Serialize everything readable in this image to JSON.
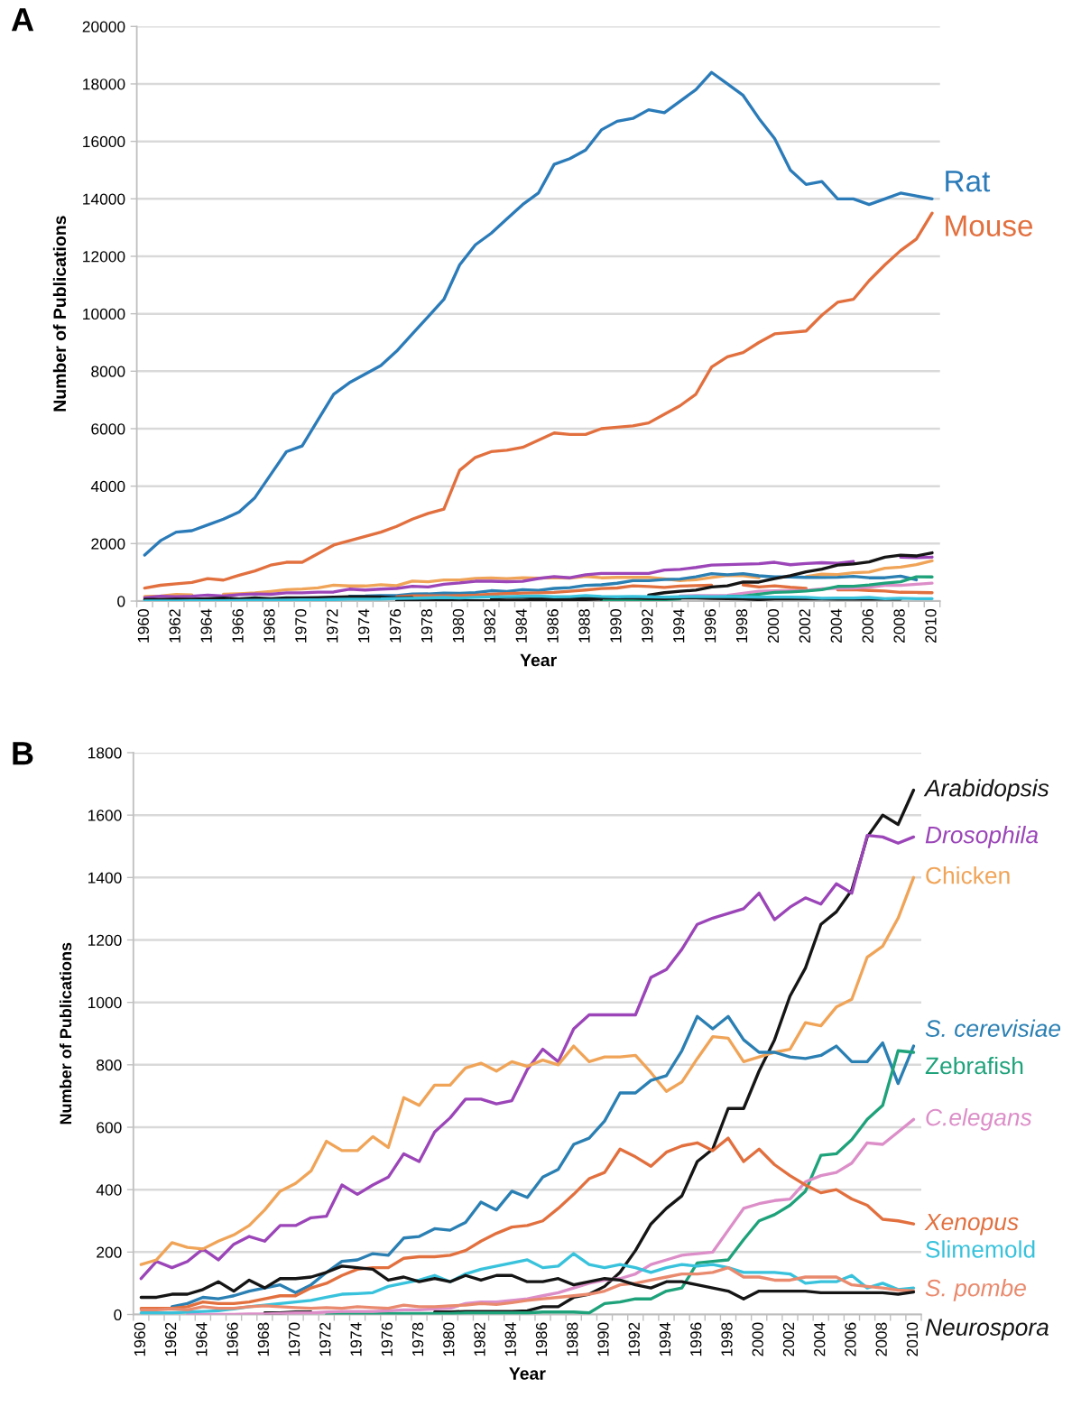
{
  "chart_data": [
    {
      "type": "line",
      "title": "A",
      "xlabel": "Year",
      "ylabel": "Number of Publications",
      "grid": "y",
      "ylim": [
        0,
        20000
      ],
      "yticks": [
        0,
        2000,
        4000,
        6000,
        8000,
        10000,
        12000,
        14000,
        16000,
        18000,
        20000
      ],
      "categories": [
        "1960",
        null,
        "1962",
        null,
        "1964",
        null,
        "1966",
        null,
        "1968",
        null,
        "1970",
        null,
        "1972",
        null,
        "1974",
        null,
        "1976",
        null,
        "1978",
        null,
        "1980",
        null,
        "1982",
        null,
        "1984",
        null,
        "1986",
        null,
        "1988",
        null,
        "1990",
        null,
        "1992",
        null,
        "1994",
        null,
        "1996",
        null,
        "1998",
        null,
        "2000",
        null,
        "2002",
        null,
        "2004",
        null,
        "2006",
        null,
        "2008",
        null,
        "2010"
      ],
      "series": [
        {
          "color": "#f0a458",
          "values": [
            160,
            175,
            230,
            215,
            null,
            235,
            255,
            285,
            335,
            395,
            420,
            460,
            555,
            525,
            525,
            570,
            535,
            695,
            670,
            735,
            735,
            790,
            805,
            780,
            810,
            795,
            815,
            800,
            860,
            810,
            825,
            825,
            830,
            775,
            715,
            745,
            820,
            890,
            885,
            810,
            null,
            null,
            850,
            935,
            925,
            985,
            1010,
            1145,
            1180,
            1270,
            1400
          ]
        },
        {
          "color": "#9b45b8",
          "values": [
            115,
            170,
            150,
            170,
            210,
            175,
            225,
            250,
            235,
            285,
            285,
            310,
            315,
            415,
            385,
            415,
            440,
            515,
            490,
            585,
            630,
            690,
            690,
            675,
            685,
            785,
            850,
            810,
            915,
            960,
            960,
            960,
            960,
            1080,
            1105,
            1170,
            1250,
            1270,
            1285,
            1300,
            1350,
            1265,
            1305,
            1335,
            1315,
            1380,
            null,
            null,
            1530,
            1510,
            1530
          ]
        },
        {
          "color": "#2a7fb3",
          "values": [
            null,
            null,
            null,
            null,
            null,
            null,
            null,
            null,
            null,
            null,
            null,
            null,
            null,
            170,
            175,
            195,
            190,
            245,
            250,
            275,
            270,
            295,
            360,
            335,
            395,
            375,
            440,
            465,
            545,
            565,
            620,
            710,
            710,
            750,
            765,
            845,
            955,
            915,
            955,
            880,
            840,
            840,
            825,
            820,
            830,
            860,
            810,
            810,
            870,
            740,
            null
          ]
        },
        {
          "color": "#e2703f",
          "values": [
            null,
            null,
            null,
            null,
            null,
            null,
            null,
            null,
            null,
            null,
            null,
            null,
            null,
            null,
            null,
            null,
            150,
            180,
            185,
            185,
            190,
            205,
            235,
            260,
            280,
            285,
            300,
            340,
            385,
            435,
            455,
            530,
            505,
            475,
            520,
            540,
            550,
            null,
            565,
            490,
            530,
            480,
            445,
            null,
            390,
            400,
            370,
            350,
            305,
            300,
            290
          ]
        },
        {
          "color": "#dc8ec8",
          "values": [
            null,
            null,
            null,
            null,
            null,
            null,
            null,
            null,
            null,
            null,
            null,
            null,
            null,
            null,
            null,
            null,
            null,
            null,
            null,
            null,
            null,
            null,
            null,
            null,
            null,
            null,
            null,
            null,
            null,
            null,
            null,
            null,
            null,
            null,
            175,
            190,
            195,
            200,
            270,
            340,
            355,
            365,
            370,
            425,
            445,
            455,
            485,
            550,
            545,
            585,
            625
          ]
        },
        {
          "color": "#1ea27a",
          "values": [
            null,
            null,
            null,
            null,
            null,
            null,
            null,
            null,
            null,
            null,
            null,
            null,
            null,
            null,
            null,
            null,
            null,
            null,
            null,
            null,
            null,
            null,
            null,
            null,
            null,
            null,
            null,
            null,
            null,
            5,
            35,
            40,
            50,
            50,
            75,
            null,
            null,
            170,
            175,
            240,
            300,
            320,
            350,
            395,
            510,
            515,
            560,
            625,
            670,
            845,
            840
          ]
        },
        {
          "color": "#151515",
          "values": [
            null,
            null,
            null,
            null,
            null,
            null,
            null,
            null,
            null,
            null,
            null,
            null,
            null,
            null,
            null,
            null,
            8,
            8,
            8,
            8,
            8,
            10,
            10,
            10,
            10,
            12,
            25,
            25,
            55,
            65,
            null,
            null,
            205,
            290,
            340,
            380,
            490,
            530,
            660,
            660,
            780,
            880,
            1020,
            1110,
            1250,
            1290,
            1360,
            1530,
            1600,
            1570,
            1680
          ]
        },
        {
          "color": "#151515",
          "values": [
            55,
            55,
            65,
            65,
            80,
            105,
            75,
            110,
            85,
            115,
            115,
            120,
            135,
            155,
            150,
            145,
            110,
            120,
            null,
            null,
            null,
            null,
            110,
            125,
            125,
            105,
            105,
            115,
            95,
            105,
            115,
            110,
            95,
            85,
            105,
            105,
            95,
            85,
            75,
            50,
            75,
            75,
            75,
            75,
            70,
            70,
            70,
            70,
            70,
            null,
            null
          ]
        },
        {
          "color": "#38c2dc",
          "values": [
            5,
            5,
            5,
            8,
            10,
            12,
            18,
            25,
            30,
            35,
            40,
            45,
            55,
            65,
            67,
            70,
            90,
            100,
            110,
            125,
            105,
            130,
            145,
            155,
            165,
            175,
            150,
            155,
            195,
            160,
            150,
            160,
            150,
            135,
            150,
            160,
            155,
            160,
            150,
            135,
            135,
            135,
            130,
            100,
            105,
            105,
            125,
            85,
            100,
            80,
            85
          ]
        },
        {
          "name": "Rat",
          "color": "#2b7bb9",
          "values": [
            1600,
            2100,
            2400,
            2450,
            2650,
            2850,
            3100,
            3600,
            4400,
            5200,
            5400,
            6300,
            7200,
            7600,
            7900,
            8200,
            8700,
            9300,
            9900,
            10500,
            11700,
            12400,
            12800,
            13300,
            13800,
            14200,
            15200,
            15400,
            15700,
            16400,
            16700,
            16800,
            17100,
            17000,
            17400,
            17800,
            18400,
            18000,
            17600,
            16800,
            16100,
            15000,
            14500,
            14600,
            14000,
            14000,
            13800,
            14000,
            14200,
            14100,
            14000
          ]
        },
        {
          "name": "Mouse",
          "color": "#e2703f",
          "values": [
            450,
            550,
            600,
            650,
            780,
            730,
            900,
            1050,
            1250,
            1350,
            1350,
            1650,
            1950,
            2100,
            2250,
            2400,
            2600,
            2850,
            3050,
            3200,
            4550,
            5000,
            5200,
            5250,
            5350,
            5600,
            5850,
            5800,
            5800,
            6000,
            6050,
            6100,
            6200,
            6500,
            6800,
            7200,
            8150,
            8500,
            8650,
            9000,
            9300,
            9350,
            9400,
            9950,
            10400,
            10500,
            11150,
            11700,
            12200,
            12600,
            13500
          ]
        }
      ]
    },
    {
      "type": "line",
      "title": "B",
      "xlabel": "Year",
      "ylabel": "Number of Publications",
      "grid": "y",
      "ylim": [
        0,
        1800
      ],
      "yticks": [
        0,
        200,
        400,
        600,
        800,
        1000,
        1200,
        1400,
        1600,
        1800
      ],
      "categories": [
        "1960",
        null,
        "1962",
        null,
        "1964",
        null,
        "1966",
        null,
        "1968",
        null,
        "1970",
        null,
        "1972",
        null,
        "1974",
        null,
        "1976",
        null,
        "1978",
        null,
        "1980",
        null,
        "1982",
        null,
        "1984",
        null,
        "1986",
        null,
        "1988",
        null,
        "1990",
        null,
        "1992",
        null,
        "1994",
        null,
        "1996",
        null,
        "1998",
        null,
        "2000",
        null,
        "2002",
        null,
        "2004",
        null,
        "2006",
        null,
        "2008",
        null,
        "2010"
      ],
      "series": [
        {
          "name": "Arabidopsis",
          "color": "#151515",
          "values": [
            null,
            null,
            null,
            null,
            null,
            null,
            null,
            null,
            5,
            5,
            8,
            8,
            null,
            null,
            null,
            null,
            null,
            null,
            null,
            8,
            8,
            10,
            10,
            10,
            10,
            12,
            25,
            25,
            55,
            65,
            90,
            135,
            205,
            290,
            340,
            380,
            490,
            530,
            660,
            660,
            780,
            880,
            1020,
            1110,
            1250,
            1290,
            1360,
            1530,
            1600,
            1570,
            1680
          ]
        },
        {
          "name": "Drosophila",
          "color": "#9b45b8",
          "values": [
            115,
            170,
            150,
            170,
            210,
            175,
            225,
            250,
            235,
            285,
            285,
            310,
            315,
            415,
            385,
            415,
            440,
            515,
            490,
            585,
            630,
            690,
            690,
            675,
            685,
            785,
            850,
            810,
            915,
            960,
            960,
            960,
            960,
            1080,
            1105,
            1170,
            1250,
            1270,
            1285,
            1300,
            1350,
            1265,
            1305,
            1335,
            1315,
            1380,
            1350,
            1535,
            1530,
            1510,
            1530
          ]
        },
        {
          "name": "Chicken",
          "color": "#f0a458",
          "values": [
            160,
            175,
            230,
            215,
            210,
            235,
            255,
            285,
            335,
            395,
            420,
            460,
            555,
            525,
            525,
            570,
            535,
            695,
            670,
            735,
            735,
            790,
            805,
            780,
            810,
            795,
            815,
            800,
            860,
            810,
            825,
            825,
            830,
            775,
            715,
            745,
            820,
            890,
            885,
            810,
            825,
            840,
            850,
            935,
            925,
            985,
            1010,
            1145,
            1180,
            1270,
            1400
          ]
        },
        {
          "name": "S. cerevisiae",
          "color": "#2a7fb3",
          "values": [
            null,
            null,
            25,
            35,
            55,
            50,
            60,
            75,
            85,
            95,
            70,
            95,
            135,
            170,
            175,
            195,
            190,
            245,
            250,
            275,
            270,
            295,
            360,
            335,
            395,
            375,
            440,
            465,
            545,
            565,
            620,
            710,
            710,
            750,
            765,
            845,
            955,
            915,
            955,
            880,
            840,
            840,
            825,
            820,
            830,
            860,
            810,
            810,
            870,
            740,
            860
          ]
        },
        {
          "name": "Zebrafish",
          "color": "#1ea27a",
          "values": [
            null,
            null,
            null,
            null,
            null,
            null,
            null,
            null,
            null,
            null,
            null,
            null,
            0,
            2,
            2,
            2,
            3,
            3,
            3,
            3,
            3,
            5,
            5,
            5,
            5,
            5,
            8,
            8,
            8,
            5,
            35,
            40,
            50,
            50,
            75,
            85,
            165,
            170,
            175,
            240,
            300,
            320,
            350,
            395,
            510,
            515,
            560,
            625,
            670,
            845,
            840
          ]
        },
        {
          "name": "C.elegans",
          "color": "#dc8ec8",
          "values": [
            null,
            null,
            null,
            0,
            0,
            0,
            0,
            2,
            2,
            3,
            5,
            5,
            8,
            10,
            10,
            10,
            12,
            15,
            15,
            18,
            20,
            35,
            40,
            40,
            45,
            50,
            60,
            70,
            85,
            100,
            110,
            115,
            130,
            160,
            175,
            190,
            195,
            200,
            270,
            340,
            355,
            365,
            370,
            425,
            445,
            455,
            485,
            550,
            545,
            585,
            625
          ]
        },
        {
          "name": "Xenopus",
          "color": "#e2703f",
          "values": [
            20,
            20,
            20,
            25,
            40,
            35,
            35,
            40,
            50,
            60,
            60,
            85,
            100,
            125,
            145,
            150,
            150,
            180,
            185,
            185,
            190,
            205,
            235,
            260,
            280,
            285,
            300,
            340,
            385,
            435,
            455,
            530,
            505,
            475,
            520,
            540,
            550,
            525,
            565,
            490,
            530,
            480,
            445,
            415,
            390,
            400,
            370,
            350,
            305,
            300,
            290
          ]
        },
        {
          "name": "Slimemold",
          "color": "#38c2dc",
          "values": [
            5,
            5,
            5,
            8,
            10,
            12,
            18,
            25,
            30,
            35,
            40,
            45,
            55,
            65,
            67,
            70,
            90,
            100,
            110,
            125,
            105,
            130,
            145,
            155,
            165,
            175,
            150,
            155,
            195,
            160,
            150,
            160,
            150,
            135,
            150,
            160,
            155,
            160,
            150,
            135,
            135,
            135,
            130,
            100,
            105,
            105,
            125,
            85,
            100,
            80,
            85
          ]
        },
        {
          "name": "S. pombe",
          "color": "#e98a6e",
          "values": [
            15,
            15,
            18,
            15,
            25,
            20,
            20,
            25,
            28,
            25,
            22,
            20,
            22,
            20,
            25,
            22,
            20,
            30,
            25,
            25,
            28,
            30,
            35,
            32,
            38,
            45,
            50,
            55,
            60,
            65,
            75,
            95,
            100,
            110,
            120,
            130,
            130,
            135,
            150,
            120,
            120,
            110,
            110,
            120,
            120,
            120,
            95,
            90,
            85,
            78,
            76
          ]
        },
        {
          "name": "Neurospora",
          "color": "#151515",
          "values": [
            55,
            55,
            65,
            65,
            80,
            105,
            75,
            110,
            85,
            115,
            115,
            120,
            135,
            155,
            150,
            145,
            110,
            120,
            105,
            115,
            105,
            125,
            110,
            125,
            125,
            105,
            105,
            115,
            95,
            105,
            115,
            110,
            95,
            85,
            105,
            105,
            95,
            85,
            75,
            50,
            75,
            75,
            75,
            75,
            70,
            70,
            70,
            70,
            70,
            65,
            72
          ]
        }
      ]
    }
  ]
}
